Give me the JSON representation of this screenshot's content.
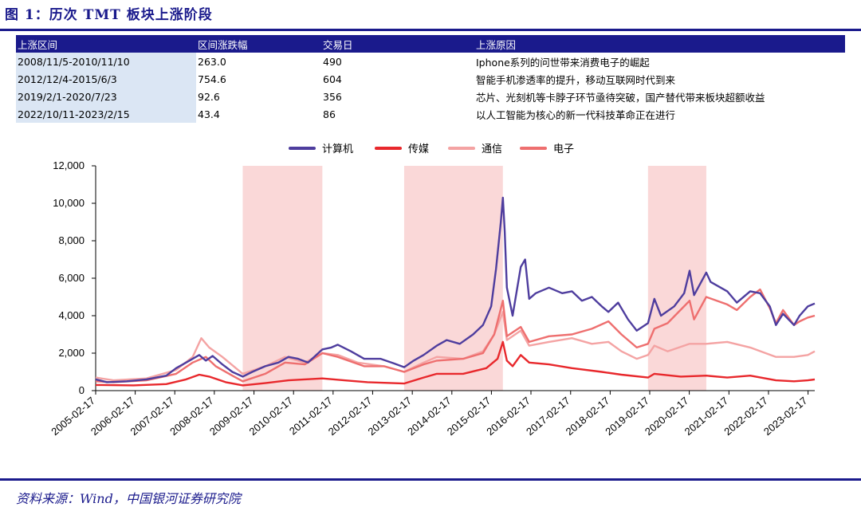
{
  "header": {
    "title": "图 1：历次 TMT 板块上涨阶段"
  },
  "table": {
    "columns": [
      "上涨区间",
      "区间涨跌幅",
      "交易日",
      "上涨原因"
    ],
    "rows": [
      [
        "2008/11/5-2010/11/10",
        "263.0",
        "490",
        "Iphone系列的问世带来消费电子的崛起"
      ],
      [
        "2012/12/4-2015/6/3",
        "754.6",
        "604",
        "智能手机渗透率的提升，移动互联网时代到来"
      ],
      [
        "2019/2/1-2020/7/23",
        "92.6",
        "356",
        "芯片、光刻机等卡脖子环节亟待突破，国产替代带来板块超额收益"
      ],
      [
        "2022/10/11-2023/2/15",
        "43.4",
        "86",
        "以人工智能为核心的新一代科技革命正在进行"
      ]
    ]
  },
  "footer": {
    "source": "资料来源：Wind，中国银河证券研究院"
  },
  "colors": {
    "navy": "#1a1a8c",
    "computer": "#4e3d9e",
    "media": "#e8282c",
    "telecom": "#f4a3a3",
    "electronics": "#ee6f6f",
    "shade": "#fad8d8"
  },
  "chart_data": {
    "type": "line",
    "ylim": [
      0,
      12000
    ],
    "y_ticks": [
      0,
      2000,
      4000,
      6000,
      8000,
      10000,
      12000
    ],
    "y_tick_labels": [
      "0",
      "2,000",
      "4,000",
      "6,000",
      "8,000",
      "10,000",
      "12,000"
    ],
    "x_tick_labels": [
      "2005-02-17",
      "2006-02-17",
      "2007-02-17",
      "2008-02-17",
      "2009-02-17",
      "2010-02-17",
      "2011-02-17",
      "2012-02-17",
      "2013-02-17",
      "2014-02-17",
      "2015-02-17",
      "2016-02-17",
      "2017-02-17",
      "2018-02-17",
      "2019-02-17",
      "2020-02-17",
      "2021-02-17",
      "2022-02-17",
      "2023-02-17"
    ],
    "x_range": [
      "2005-02-17",
      "2023-04-20"
    ],
    "shaded_periods": [
      [
        "2008-11-05",
        "2010-11-10"
      ],
      [
        "2012-12-04",
        "2015-06-03"
      ],
      [
        "2019-02-01",
        "2020-07-23"
      ]
    ],
    "series": [
      {
        "name": "计算机",
        "color": "#4e3d9e",
        "points": [
          [
            "2005-02-17",
            600
          ],
          [
            "2005-06-01",
            450
          ],
          [
            "2005-12-01",
            500
          ],
          [
            "2006-06-01",
            600
          ],
          [
            "2006-12-01",
            800
          ],
          [
            "2007-03-01",
            1200
          ],
          [
            "2007-06-01",
            1500
          ],
          [
            "2007-10-01",
            1900
          ],
          [
            "2007-12-01",
            1600
          ],
          [
            "2008-02-01",
            1850
          ],
          [
            "2008-05-01",
            1400
          ],
          [
            "2008-08-01",
            1000
          ],
          [
            "2008-11-05",
            750
          ],
          [
            "2009-02-01",
            1000
          ],
          [
            "2009-06-01",
            1300
          ],
          [
            "2009-10-01",
            1500
          ],
          [
            "2010-01-01",
            1800
          ],
          [
            "2010-04-01",
            1700
          ],
          [
            "2010-07-01",
            1500
          ],
          [
            "2010-11-10",
            2200
          ],
          [
            "2011-02-01",
            2300
          ],
          [
            "2011-04-01",
            2450
          ],
          [
            "2011-08-01",
            2100
          ],
          [
            "2011-12-01",
            1700
          ],
          [
            "2012-05-01",
            1700
          ],
          [
            "2012-09-01",
            1450
          ],
          [
            "2012-12-04",
            1250
          ],
          [
            "2013-03-01",
            1600
          ],
          [
            "2013-06-01",
            1900
          ],
          [
            "2013-10-01",
            2400
          ],
          [
            "2014-01-01",
            2700
          ],
          [
            "2014-05-01",
            2500
          ],
          [
            "2014-09-01",
            3000
          ],
          [
            "2014-12-01",
            3500
          ],
          [
            "2015-02-15",
            4500
          ],
          [
            "2015-04-01",
            6500
          ],
          [
            "2015-05-15",
            9000
          ],
          [
            "2015-06-03",
            10300
          ],
          [
            "2015-06-20",
            8500
          ],
          [
            "2015-07-10",
            5500
          ],
          [
            "2015-09-01",
            4000
          ],
          [
            "2015-11-15",
            6600
          ],
          [
            "2015-12-25",
            7000
          ],
          [
            "2016-02-01",
            4900
          ],
          [
            "2016-04-01",
            5200
          ],
          [
            "2016-08-01",
            5500
          ],
          [
            "2016-12-01",
            5200
          ],
          [
            "2017-03-01",
            5300
          ],
          [
            "2017-06-01",
            4800
          ],
          [
            "2017-09-01",
            5000
          ],
          [
            "2017-12-01",
            4500
          ],
          [
            "2018-02-01",
            4200
          ],
          [
            "2018-05-01",
            4700
          ],
          [
            "2018-08-01",
            3800
          ],
          [
            "2018-10-20",
            3200
          ],
          [
            "2019-02-01",
            3600
          ],
          [
            "2019-04-01",
            4900
          ],
          [
            "2019-06-01",
            4000
          ],
          [
            "2019-10-01",
            4500
          ],
          [
            "2020-01-01",
            5200
          ],
          [
            "2020-02-20",
            6400
          ],
          [
            "2020-04-01",
            5100
          ],
          [
            "2020-07-23",
            6300
          ],
          [
            "2020-09-01",
            5800
          ],
          [
            "2021-02-01",
            5300
          ],
          [
            "2021-05-01",
            4700
          ],
          [
            "2021-09-01",
            5300
          ],
          [
            "2021-12-01",
            5200
          ],
          [
            "2022-03-01",
            4500
          ],
          [
            "2022-04-27",
            3500
          ],
          [
            "2022-07-01",
            4100
          ],
          [
            "2022-10-11",
            3500
          ],
          [
            "2022-12-01",
            4000
          ],
          [
            "2023-02-15",
            4500
          ],
          [
            "2023-04-20",
            4650
          ]
        ]
      },
      {
        "name": "传媒",
        "color": "#e8282c",
        "points": [
          [
            "2005-02-17",
            300
          ],
          [
            "2006-02-01",
            280
          ],
          [
            "2006-12-01",
            350
          ],
          [
            "2007-06-01",
            600
          ],
          [
            "2007-10-01",
            850
          ],
          [
            "2008-01-01",
            750
          ],
          [
            "2008-06-01",
            450
          ],
          [
            "2008-11-05",
            280
          ],
          [
            "2009-06-01",
            400
          ],
          [
            "2010-01-01",
            550
          ],
          [
            "2010-06-01",
            600
          ],
          [
            "2010-11-10",
            650
          ],
          [
            "2011-06-01",
            550
          ],
          [
            "2012-01-01",
            450
          ],
          [
            "2012-12-04",
            380
          ],
          [
            "2013-06-01",
            700
          ],
          [
            "2013-10-01",
            900
          ],
          [
            "2014-06-01",
            900
          ],
          [
            "2015-01-01",
            1200
          ],
          [
            "2015-04-15",
            1700
          ],
          [
            "2015-06-03",
            2600
          ],
          [
            "2015-07-10",
            1600
          ],
          [
            "2015-09-01",
            1300
          ],
          [
            "2015-11-15",
            1900
          ],
          [
            "2016-02-01",
            1500
          ],
          [
            "2016-08-01",
            1400
          ],
          [
            "2017-03-01",
            1200
          ],
          [
            "2017-12-01",
            1000
          ],
          [
            "2018-06-01",
            850
          ],
          [
            "2019-02-01",
            700
          ],
          [
            "2019-04-01",
            900
          ],
          [
            "2019-12-01",
            750
          ],
          [
            "2020-07-23",
            800
          ],
          [
            "2021-02-01",
            700
          ],
          [
            "2021-09-01",
            800
          ],
          [
            "2022-04-27",
            550
          ],
          [
            "2022-10-11",
            500
          ],
          [
            "2023-02-15",
            550
          ],
          [
            "2023-04-20",
            600
          ]
        ]
      },
      {
        "name": "通信",
        "color": "#f4a3a3",
        "points": [
          [
            "2005-02-17",
            700
          ],
          [
            "2005-08-01",
            550
          ],
          [
            "2006-06-01",
            650
          ],
          [
            "2007-03-01",
            1100
          ],
          [
            "2007-08-01",
            1800
          ],
          [
            "2007-10-20",
            2800
          ],
          [
            "2008-01-01",
            2300
          ],
          [
            "2008-05-01",
            1800
          ],
          [
            "2008-11-05",
            900
          ],
          [
            "2009-06-01",
            1300
          ],
          [
            "2009-12-01",
            1800
          ],
          [
            "2010-06-01",
            1500
          ],
          [
            "2010-11-10",
            2000
          ],
          [
            "2011-04-01",
            1900
          ],
          [
            "2011-10-01",
            1500
          ],
          [
            "2012-06-01",
            1300
          ],
          [
            "2012-12-04",
            1000
          ],
          [
            "2013-06-01",
            1500
          ],
          [
            "2013-10-01",
            1800
          ],
          [
            "2014-06-01",
            1700
          ],
          [
            "2014-12-01",
            2100
          ],
          [
            "2015-03-15",
            3000
          ],
          [
            "2015-06-03",
            4200
          ],
          [
            "2015-07-10",
            2700
          ],
          [
            "2015-11-15",
            3200
          ],
          [
            "2016-02-01",
            2400
          ],
          [
            "2016-08-01",
            2600
          ],
          [
            "2017-03-01",
            2800
          ],
          [
            "2017-09-01",
            2500
          ],
          [
            "2018-02-01",
            2600
          ],
          [
            "2018-06-01",
            2100
          ],
          [
            "2018-10-20",
            1700
          ],
          [
            "2019-02-01",
            1900
          ],
          [
            "2019-04-01",
            2400
          ],
          [
            "2019-08-01",
            2100
          ],
          [
            "2020-02-20",
            2500
          ],
          [
            "2020-07-23",
            2500
          ],
          [
            "2021-02-01",
            2600
          ],
          [
            "2021-09-01",
            2300
          ],
          [
            "2022-04-27",
            1800
          ],
          [
            "2022-10-11",
            1800
          ],
          [
            "2023-02-15",
            1900
          ],
          [
            "2023-04-20",
            2100
          ]
        ]
      },
      {
        "name": "电子",
        "color": "#ee6f6f",
        "points": [
          [
            "2005-02-17",
            500
          ],
          [
            "2005-08-01",
            450
          ],
          [
            "2006-06-01",
            550
          ],
          [
            "2007-03-01",
            900
          ],
          [
            "2007-08-01",
            1500
          ],
          [
            "2007-12-01",
            1800
          ],
          [
            "2008-03-01",
            1300
          ],
          [
            "2008-08-01",
            800
          ],
          [
            "2008-11-05",
            500
          ],
          [
            "2009-06-01",
            900
          ],
          [
            "2009-12-01",
            1500
          ],
          [
            "2010-06-01",
            1400
          ],
          [
            "2010-11-10",
            2000
          ],
          [
            "2011-04-01",
            1800
          ],
          [
            "2011-12-01",
            1300
          ],
          [
            "2012-06-01",
            1300
          ],
          [
            "2012-12-04",
            1000
          ],
          [
            "2013-06-01",
            1400
          ],
          [
            "2013-10-01",
            1600
          ],
          [
            "2014-06-01",
            1700
          ],
          [
            "2014-12-01",
            2000
          ],
          [
            "2015-03-15",
            3000
          ],
          [
            "2015-06-03",
            4800
          ],
          [
            "2015-07-10",
            2900
          ],
          [
            "2015-11-15",
            3400
          ],
          [
            "2016-02-01",
            2600
          ],
          [
            "2016-08-01",
            2900
          ],
          [
            "2017-03-01",
            3000
          ],
          [
            "2017-09-01",
            3300
          ],
          [
            "2018-02-01",
            3700
          ],
          [
            "2018-06-01",
            3000
          ],
          [
            "2018-10-20",
            2300
          ],
          [
            "2019-02-01",
            2500
          ],
          [
            "2019-04-01",
            3300
          ],
          [
            "2019-08-01",
            3600
          ],
          [
            "2020-02-20",
            4800
          ],
          [
            "2020-04-01",
            3800
          ],
          [
            "2020-07-23",
            5000
          ],
          [
            "2021-02-01",
            4600
          ],
          [
            "2021-05-01",
            4300
          ],
          [
            "2021-09-01",
            5000
          ],
          [
            "2021-12-01",
            5400
          ],
          [
            "2022-03-01",
            4400
          ],
          [
            "2022-04-27",
            3600
          ],
          [
            "2022-07-01",
            4300
          ],
          [
            "2022-10-11",
            3500
          ],
          [
            "2022-12-01",
            3700
          ],
          [
            "2023-02-15",
            3900
          ],
          [
            "2023-04-20",
            4000
          ]
        ]
      }
    ]
  }
}
